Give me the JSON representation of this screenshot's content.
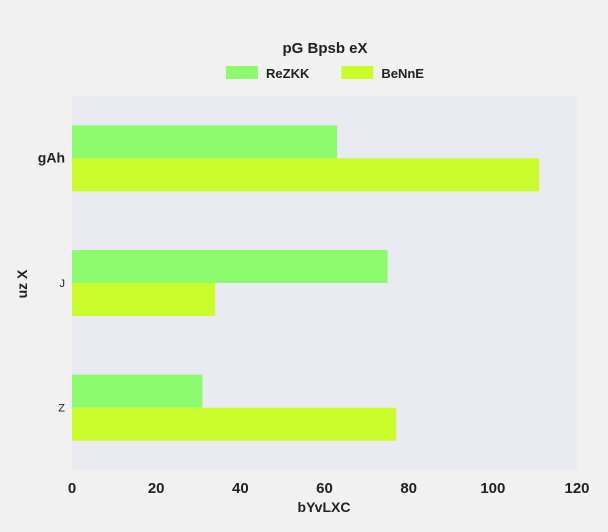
{
  "chart_data": {
    "type": "bar",
    "orientation": "horizontal",
    "title": "pG Bpsb eX",
    "xlabel": "bYvLXC",
    "ylabel": "uz X",
    "categories": [
      "gAh",
      "J",
      "Z"
    ],
    "series": [
      {
        "name": "ReZKK",
        "values": [
          63,
          75,
          31
        ],
        "color": "#8cfc6e"
      },
      {
        "name": "BeNnE",
        "values": [
          111,
          34,
          77
        ],
        "color": "#cafc2c"
      }
    ],
    "xlim": [
      0,
      120
    ],
    "xticks": [
      0,
      20,
      40,
      60,
      80,
      100,
      120
    ],
    "grid": false,
    "legend_position": "top-center",
    "plot_background": "#eaeaf2",
    "page_background": "#f1f1f1"
  }
}
